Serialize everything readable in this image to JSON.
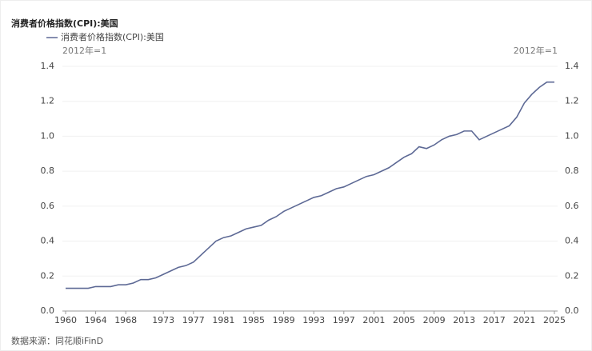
{
  "chart_data": {
    "type": "line",
    "title": "消费者价格指数(CPI):美国",
    "y_unit": "2012年=1",
    "y2_unit": "2012年=1",
    "source": "数据来源：同花顺iFinD",
    "x": [
      1960,
      1961,
      1962,
      1963,
      1964,
      1965,
      1966,
      1967,
      1968,
      1969,
      1970,
      1971,
      1972,
      1973,
      1974,
      1975,
      1976,
      1977,
      1978,
      1979,
      1980,
      1981,
      1982,
      1983,
      1984,
      1985,
      1986,
      1987,
      1988,
      1989,
      1990,
      1991,
      1992,
      1993,
      1994,
      1995,
      1996,
      1997,
      1998,
      1999,
      2000,
      2001,
      2002,
      2003,
      2004,
      2005,
      2006,
      2007,
      2008,
      2009,
      2010,
      2011,
      2012,
      2013,
      2014,
      2015,
      2016,
      2017,
      2018,
      2019,
      2020,
      2021,
      2022,
      2023,
      2024,
      2025
    ],
    "series": [
      {
        "name": "消费者价格指数(CPI):美国",
        "color": "#5d6995",
        "values": [
          0.13,
          0.13,
          0.13,
          0.13,
          0.14,
          0.14,
          0.14,
          0.15,
          0.15,
          0.16,
          0.18,
          0.18,
          0.19,
          0.21,
          0.23,
          0.25,
          0.26,
          0.28,
          0.32,
          0.36,
          0.4,
          0.42,
          0.43,
          0.45,
          0.47,
          0.48,
          0.49,
          0.52,
          0.54,
          0.57,
          0.59,
          0.61,
          0.63,
          0.65,
          0.66,
          0.68,
          0.7,
          0.71,
          0.73,
          0.75,
          0.77,
          0.78,
          0.8,
          0.82,
          0.85,
          0.88,
          0.9,
          0.94,
          0.93,
          0.95,
          0.98,
          1.0,
          1.01,
          1.03,
          1.03,
          0.98,
          1.0,
          1.02,
          1.04,
          1.06,
          1.11,
          1.19,
          1.24,
          1.28,
          1.31,
          1.31
        ]
      }
    ],
    "xlim": [
      1960,
      2025
    ],
    "xticks": [
      1960,
      1964,
      1968,
      1973,
      1977,
      1981,
      1985,
      1989,
      1993,
      1997,
      2001,
      2005,
      2009,
      2013,
      2017,
      2021,
      2025
    ],
    "ylim": [
      0,
      1.4
    ],
    "yticks": [
      {
        "value": 0,
        "label": "0.0"
      },
      0.2,
      0.4,
      0.6,
      0.8,
      {
        "value": 1,
        "label": "1.0"
      },
      1.2,
      1.4
    ],
    "y2lim": [
      0,
      1.4
    ],
    "y2ticks": [
      {
        "value": 0,
        "label": "0.0"
      },
      0.2,
      0.4,
      0.6,
      0.8,
      {
        "value": 1,
        "label": "1.0"
      },
      1.2,
      1.4
    ],
    "grid": true
  }
}
